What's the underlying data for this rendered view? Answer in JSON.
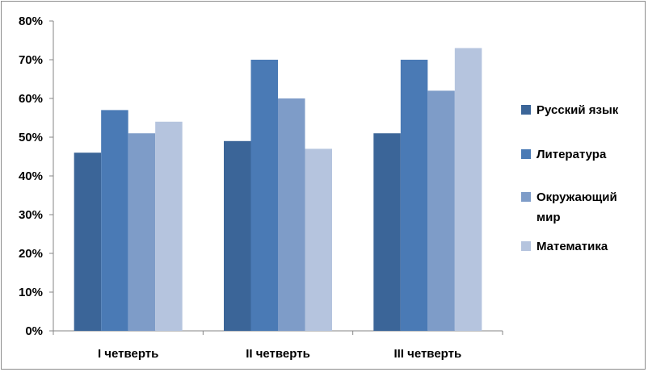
{
  "chart_data": {
    "type": "bar",
    "categories": [
      "I четверть",
      "II четверть",
      "III четверть"
    ],
    "series": [
      {
        "name": "Русский язык",
        "values": [
          46,
          49,
          51
        ],
        "color": "#3b6598"
      },
      {
        "name": "Литература",
        "values": [
          57,
          70,
          70
        ],
        "color": "#4a7ab5"
      },
      {
        "name": "Окружающий мир",
        "name_lines": [
          "Окружающий",
          "мир"
        ],
        "values": [
          51,
          60,
          62
        ],
        "color": "#7e9cc8"
      },
      {
        "name": "Математика",
        "values": [
          54,
          47,
          73
        ],
        "color": "#b5c4de"
      }
    ],
    "ylim": [
      0,
      80
    ],
    "yticks": [
      "0%",
      "10%",
      "20%",
      "30%",
      "40%",
      "50%",
      "60%",
      "70%",
      "80%"
    ],
    "y_unit": "%",
    "grid": false,
    "legend_position": "right"
  }
}
